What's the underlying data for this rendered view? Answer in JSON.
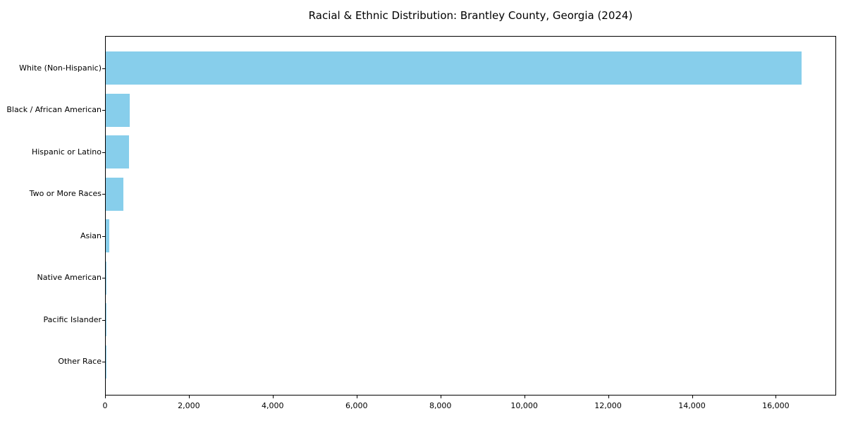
{
  "chart_data": {
    "type": "bar",
    "orientation": "horizontal",
    "title": "Racial & Ethnic Distribution: Brantley County, Georgia (2024)",
    "categories": [
      "White (Non-Hispanic)",
      "Black / African American",
      "Hispanic or Latino",
      "Two or More Races",
      "Asian",
      "Native American",
      "Pacific Islander",
      "Other Race"
    ],
    "values": [
      16600,
      575,
      550,
      415,
      90,
      15,
      5,
      10
    ],
    "xlabel": "",
    "ylabel": "",
    "xlim": [
      0,
      17440
    ],
    "x_ticks": [
      0,
      2000,
      4000,
      6000,
      8000,
      10000,
      12000,
      14000,
      16000
    ],
    "x_tick_labels": [
      "0",
      "2,000",
      "4,000",
      "6,000",
      "8,000",
      "10,000",
      "12,000",
      "14,000",
      "16,000"
    ],
    "bar_color": "#87CEEB",
    "background_color": "#ffffff",
    "frame_color": "#000000",
    "grid": false,
    "legend": null
  }
}
